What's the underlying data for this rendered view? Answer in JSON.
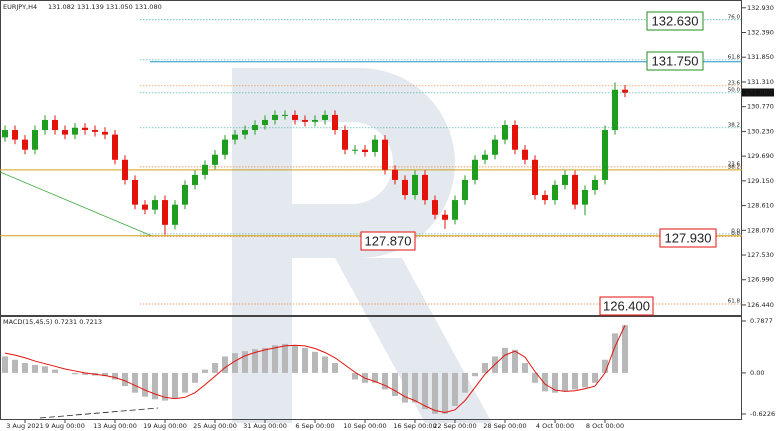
{
  "chart_data": [
    {
      "type": "candlestick",
      "title": "EURJPY,H4",
      "subtitle": "131.082 131.139 131.050 131.080",
      "categories": [
        null,
        null,
        "3 Aug 2021",
        null,
        null,
        null,
        "9 Aug 00:00",
        null,
        null,
        null,
        null,
        "13 Aug 00:00",
        null,
        null,
        null,
        null,
        "19 Aug 00:00",
        null,
        null,
        null,
        null,
        "25 Aug 00:00",
        null,
        null,
        null,
        null,
        "31 Aug 00:00",
        null,
        null,
        null,
        null,
        "6 Sep 00:00",
        null,
        null,
        null,
        null,
        "10 Sep 00:00",
        null,
        null,
        null,
        null,
        "16 Sep 00:00",
        null,
        null,
        null,
        "22 Sep 00:00",
        null,
        null,
        null,
        null,
        "28 Sep 00:00",
        null,
        null,
        null,
        null,
        "4 Oct 00:00",
        null,
        null,
        null,
        null,
        "8 Oct 00:00",
        null,
        null
      ],
      "open": [
        130.1,
        130.26,
        130.05,
        129.83,
        130.26,
        130.48,
        130.26,
        130.16,
        130.31,
        130.26,
        130.22,
        130.16,
        129.61,
        129.17,
        128.63,
        128.52,
        128.73,
        128.19,
        128.63,
        129.06,
        129.28,
        129.5,
        129.72,
        130.05,
        130.16,
        130.26,
        130.37,
        130.48,
        130.59,
        130.59,
        130.48,
        130.44,
        130.48,
        130.59,
        130.26,
        129.83,
        129.83,
        129.78,
        130.05,
        129.39,
        129.17,
        128.84,
        129.28,
        128.73,
        128.41,
        128.3,
        128.73,
        129.17,
        129.61,
        129.72,
        130.05,
        130.37,
        129.83,
        129.61,
        128.84,
        128.73,
        129.06,
        129.28,
        128.63,
        128.95,
        129.17,
        130.26,
        131.14
      ],
      "high": [
        130.36,
        130.36,
        130.15,
        130.36,
        130.58,
        130.58,
        130.36,
        130.41,
        130.41,
        130.36,
        130.32,
        130.26,
        129.71,
        129.27,
        128.73,
        128.83,
        128.83,
        128.73,
        129.16,
        129.38,
        129.6,
        129.82,
        130.15,
        130.26,
        130.36,
        130.47,
        130.58,
        130.69,
        130.69,
        130.69,
        130.58,
        130.58,
        130.69,
        130.69,
        130.36,
        129.93,
        129.93,
        130.15,
        130.15,
        129.49,
        129.27,
        129.38,
        129.38,
        128.83,
        128.51,
        128.83,
        129.27,
        129.71,
        129.82,
        130.15,
        130.47,
        130.47,
        129.93,
        129.71,
        128.94,
        129.16,
        129.38,
        129.38,
        129.05,
        129.27,
        130.36,
        131.3,
        131.24
      ],
      "low": [
        130.0,
        129.95,
        129.73,
        129.73,
        130.16,
        130.16,
        130.06,
        130.06,
        130.16,
        130.12,
        130.06,
        129.51,
        129.07,
        128.53,
        128.42,
        128.42,
        127.97,
        128.09,
        128.53,
        128.96,
        129.18,
        129.4,
        129.62,
        129.95,
        130.06,
        130.16,
        130.27,
        130.38,
        130.49,
        130.38,
        130.34,
        130.34,
        130.38,
        130.16,
        129.73,
        129.73,
        129.68,
        129.68,
        129.29,
        129.07,
        128.74,
        128.74,
        128.63,
        128.31,
        128.1,
        128.2,
        128.63,
        129.07,
        129.51,
        129.62,
        129.95,
        129.73,
        129.51,
        128.74,
        128.63,
        128.63,
        128.96,
        128.53,
        128.4,
        128.85,
        129.07,
        130.16,
        130.98
      ],
      "close": [
        130.26,
        130.05,
        129.83,
        130.26,
        130.48,
        130.26,
        130.16,
        130.31,
        130.26,
        130.22,
        130.16,
        129.61,
        129.17,
        128.63,
        128.52,
        128.73,
        128.19,
        128.63,
        129.06,
        129.28,
        129.5,
        129.72,
        130.05,
        130.16,
        130.26,
        130.37,
        130.48,
        130.59,
        130.59,
        130.48,
        130.44,
        130.48,
        130.59,
        130.26,
        129.83,
        129.83,
        129.78,
        130.05,
        129.39,
        129.17,
        128.84,
        129.28,
        128.73,
        128.41,
        128.3,
        128.73,
        129.17,
        129.61,
        129.72,
        130.05,
        130.37,
        129.83,
        129.61,
        128.84,
        128.73,
        129.06,
        129.28,
        128.63,
        128.95,
        129.17,
        130.26,
        131.14,
        131.08
      ],
      "up_color": "#1f9d1f",
      "down_color": "#e3120b",
      "price_marker": "131.080",
      "ylim": [
        126.22,
        133.1
      ],
      "yticks": [
        {
          "value": 132.93,
          "label": "132.930"
        },
        {
          "value": 132.39,
          "label": "132.390"
        },
        {
          "value": 131.85,
          "label": "131.850"
        },
        {
          "value": 131.31,
          "label": "131.310"
        },
        {
          "value": 130.77,
          "label": "130.770"
        },
        {
          "value": 130.23,
          "label": "130.230"
        },
        {
          "value": 129.69,
          "label": "129.690"
        },
        {
          "value": 129.15,
          "label": "129.150"
        },
        {
          "value": 128.61,
          "label": "128.610"
        },
        {
          "value": 128.07,
          "label": "128.070"
        },
        {
          "value": 127.53,
          "label": "127.530"
        },
        {
          "value": 126.99,
          "label": "126.990"
        },
        {
          "value": 126.44,
          "label": "126.440"
        }
      ],
      "levels": [
        {
          "label": "76.0",
          "value": 132.668,
          "color": "#3aa9a0"
        },
        {
          "label": "61.8",
          "value": 131.794,
          "color": "#3aa9a0"
        },
        {
          "label": "23.6",
          "value": 131.226,
          "color": "#e8833a"
        },
        {
          "label": "50.0",
          "value": 131.073,
          "color": "#3aa9a0"
        },
        {
          "label": "38.2",
          "value": 130.308,
          "color": "#3aa9a0"
        },
        {
          "label": "23.6",
          "value": 129.455,
          "color": "#e8833a"
        },
        {
          "label": "38.2",
          "value": 129.39,
          "color": "#3aa9a0"
        },
        {
          "label": "0.0",
          "value": 127.99,
          "color": "#3aa9a0"
        },
        {
          "label": "0.0",
          "value": 127.93,
          "color": "#e8833a"
        },
        {
          "label": "61.8",
          "value": 126.46,
          "color": "#e8833a"
        }
      ],
      "key_lines": [
        {
          "value": 131.75,
          "color": "#1e90c8"
        },
        {
          "value": 129.39,
          "color": "#d4a017"
        },
        {
          "value": 127.95,
          "color": "#d4a017"
        }
      ],
      "annotations": [
        {
          "text": "132.630",
          "color": "#1f8f1f"
        },
        {
          "text": "131.750",
          "color": "#1f8f1f"
        },
        {
          "text": "127.870",
          "color": "#e3120b"
        },
        {
          "text": "127.930",
          "color": "#e3120b"
        },
        {
          "text": "126.400",
          "color": "#e3120b"
        }
      ]
    },
    {
      "type": "macd",
      "title": "MACD(15,45,5) 0.7231 0.7213",
      "histogram": [
        0.25,
        0.2,
        0.15,
        0.12,
        0.1,
        0.05,
        0.0,
        -0.02,
        -0.03,
        -0.04,
        -0.05,
        -0.1,
        -0.2,
        -0.3,
        -0.36,
        -0.4,
        -0.42,
        -0.38,
        -0.3,
        -0.15,
        0.05,
        0.15,
        0.25,
        0.3,
        0.33,
        0.36,
        0.38,
        0.42,
        0.44,
        0.42,
        0.38,
        0.32,
        0.25,
        0.15,
        0.0,
        -0.1,
        -0.15,
        -0.15,
        -0.25,
        -0.35,
        -0.45,
        -0.45,
        -0.55,
        -0.62,
        -0.62,
        -0.5,
        -0.3,
        -0.05,
        0.15,
        0.25,
        0.38,
        0.35,
        0.15,
        -0.15,
        -0.28,
        -0.3,
        -0.28,
        -0.25,
        -0.22,
        -0.15,
        0.2,
        0.6,
        0.7231
      ],
      "signal": [
        0.3,
        0.27,
        0.23,
        0.18,
        0.14,
        0.1,
        0.06,
        0.03,
        0.0,
        -0.02,
        -0.04,
        -0.07,
        -0.12,
        -0.19,
        -0.26,
        -0.32,
        -0.37,
        -0.39,
        -0.37,
        -0.3,
        -0.18,
        -0.05,
        0.08,
        0.18,
        0.26,
        0.31,
        0.35,
        0.38,
        0.41,
        0.42,
        0.41,
        0.37,
        0.31,
        0.23,
        0.12,
        0.01,
        -0.08,
        -0.13,
        -0.19,
        -0.27,
        -0.36,
        -0.42,
        -0.5,
        -0.57,
        -0.6,
        -0.56,
        -0.42,
        -0.22,
        -0.02,
        0.13,
        0.27,
        0.33,
        0.24,
        0.02,
        -0.17,
        -0.26,
        -0.28,
        -0.27,
        -0.24,
        -0.2,
        0.0,
        0.4,
        0.7213
      ],
      "hist_color": "#b8b8b8",
      "signal_color": "#e3120b",
      "ylim": [
        -0.714,
        0.848
      ],
      "yticks": [
        0.7877,
        {
          "value": 0,
          "label": "0.00"
        },
        -0.6226
      ]
    }
  ]
}
